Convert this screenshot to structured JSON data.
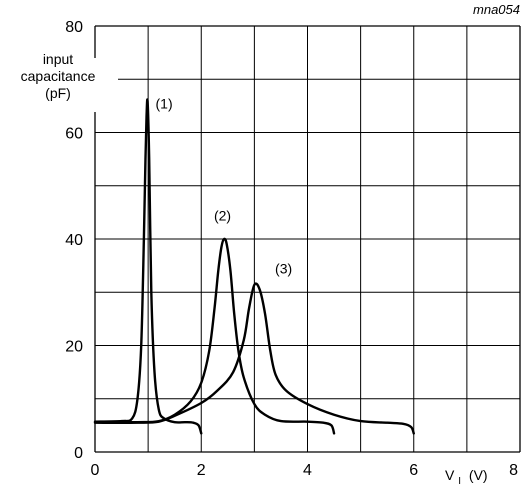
{
  "chart_data": {
    "type": "line",
    "title": "",
    "figure_code": "mna054",
    "xlabel_main": "V",
    "xlabel_sub": "I",
    "xlabel_unit": "(V)",
    "ylabel": [
      "input",
      "capacitance",
      "(pF)"
    ],
    "xlim": [
      0,
      8
    ],
    "ylim": [
      0,
      80
    ],
    "x_ticks": [
      0,
      2,
      4,
      6,
      8
    ],
    "y_ticks": [
      0,
      20,
      40,
      60,
      80
    ],
    "x_grid_step": 1,
    "y_grid_step": 10,
    "grid": true,
    "series": [
      {
        "name": "(1)",
        "x": [
          0,
          0.5,
          0.7,
          0.8,
          0.87,
          0.92,
          0.95,
          0.97,
          0.99,
          1.02,
          1.06,
          1.12,
          1.2,
          1.3,
          1.5,
          1.7,
          1.85,
          1.95,
          2.0
        ],
        "y": [
          5.7,
          5.8,
          6.3,
          10,
          20,
          40,
          55,
          63,
          65.8,
          55,
          30,
          15,
          8,
          6.3,
          5.6,
          5.6,
          5.5,
          5,
          3.5
        ]
      },
      {
        "name": "(2)",
        "x": [
          0,
          0.8,
          1.2,
          1.5,
          1.8,
          2.0,
          2.15,
          2.25,
          2.32,
          2.38,
          2.43,
          2.48,
          2.55,
          2.62,
          2.7,
          2.8,
          3.0,
          3.2,
          3.5,
          4.0,
          4.3,
          4.45,
          4.5
        ],
        "y": [
          5.6,
          5.6,
          5.8,
          7,
          9.5,
          13,
          19,
          27,
          34,
          38.5,
          40,
          39,
          34,
          26,
          19,
          14,
          9,
          7,
          5.8,
          5.7,
          5.5,
          5,
          3.5
        ]
      },
      {
        "name": "(3)",
        "x": [
          0,
          0.8,
          1.2,
          1.5,
          2.0,
          2.3,
          2.6,
          2.8,
          2.9,
          3.0,
          3.1,
          3.2,
          3.3,
          3.4,
          3.6,
          4.0,
          4.5,
          5.0,
          5.5,
          5.8,
          5.95,
          6.0
        ],
        "y": [
          5.5,
          5.5,
          5.7,
          6.8,
          9.2,
          11.5,
          15,
          21,
          27,
          31.4,
          30.5,
          26,
          19,
          14.5,
          11.5,
          9,
          7,
          5.8,
          5.5,
          5.3,
          4.7,
          3.5
        ]
      }
    ],
    "annotations": [
      {
        "text": "(1)",
        "x": 1.3,
        "y": 64.5
      },
      {
        "text": "(2)",
        "x": 2.4,
        "y": 43.5
      },
      {
        "text": "(3)",
        "x": 3.55,
        "y": 33.5
      }
    ]
  }
}
